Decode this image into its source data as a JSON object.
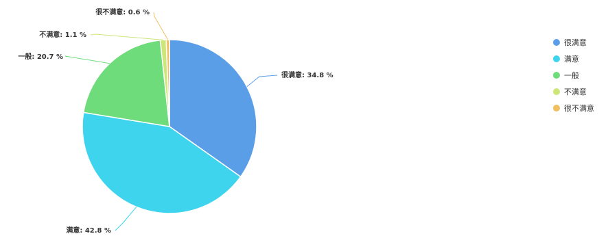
{
  "chart_data": {
    "type": "pie",
    "unit": "%",
    "slices": [
      {
        "name": "很满意",
        "label": "很满意: 34.8 %",
        "value": 34.8,
        "color": "#5b9ee8"
      },
      {
        "name": "满意",
        "label": "满意: 42.8 %",
        "value": 42.8,
        "color": "#3fd4ee"
      },
      {
        "name": "一般",
        "label": "一般: 20.7 %",
        "value": 20.7,
        "color": "#6fdc7b"
      },
      {
        "name": "不满意",
        "label": "不满意: 1.1 %",
        "value": 1.1,
        "color": "#cde67a"
      },
      {
        "name": "很不满意",
        "label": "很不满意: 0.6 %",
        "value": 0.6,
        "color": "#f0c060"
      }
    ],
    "legend_position": "right"
  }
}
